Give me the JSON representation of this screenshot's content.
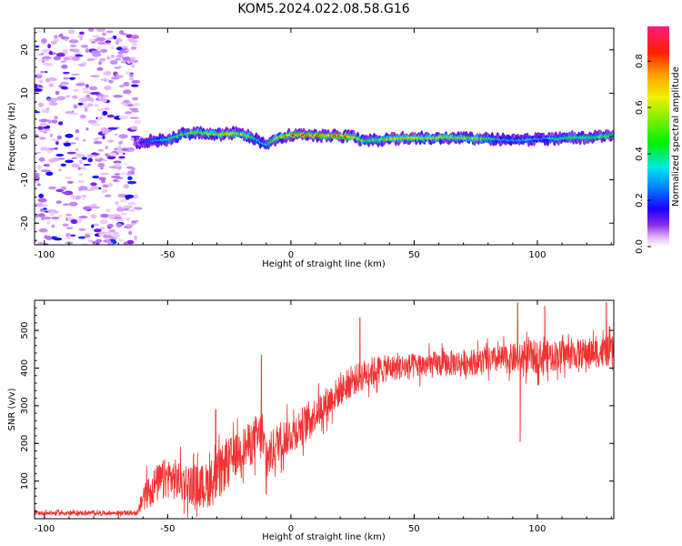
{
  "title": "KOM5.2024.022.08.58.G16",
  "chart_data": [
    {
      "type": "heatmap",
      "xlabel": "Height of straight line (km)",
      "ylabel": "Frequency (Hz)",
      "xlim": [
        -104,
        131
      ],
      "ylim": [
        -25,
        25
      ],
      "xticks": [
        -100,
        -50,
        0,
        50,
        100
      ],
      "yticks": [
        -20,
        -10,
        0,
        10,
        20
      ],
      "colorbar": {
        "label": "Normalized spectral amplitude",
        "ticks": [
          0.0,
          0.2,
          0.4,
          0.6,
          0.8
        ],
        "range": [
          0,
          0.95
        ]
      },
      "noise_region_x": [
        -104,
        -62
      ],
      "ridge": {
        "x": [
          -62,
          -57,
          -50,
          -44,
          -38,
          -33,
          -27,
          -22,
          -17,
          -13,
          -10,
          -6,
          0,
          6,
          12,
          20,
          26,
          30,
          34,
          40,
          48,
          55,
          62,
          70,
          78,
          85,
          90,
          96,
          102,
          108,
          114,
          120,
          126,
          131
        ],
        "frequency": [
          -1.5,
          -1.0,
          -0.8,
          0.5,
          1.0,
          0.6,
          0.5,
          0.8,
          0.1,
          -1.0,
          -2.0,
          -0.5,
          0.4,
          0.3,
          0.2,
          0.2,
          -0.2,
          -1.1,
          -0.8,
          -0.6,
          -0.3,
          -0.4,
          -0.2,
          -0.3,
          -0.5,
          -0.7,
          -0.9,
          -0.8,
          -0.5,
          -0.5,
          -0.2,
          -0.3,
          0.0,
          0.0
        ],
        "amplitude": [
          0.1,
          0.25,
          0.4,
          0.5,
          0.55,
          0.6,
          0.7,
          0.65,
          0.5,
          0.35,
          0.3,
          0.6,
          0.8,
          0.9,
          0.85,
          0.85,
          0.65,
          0.5,
          0.55,
          0.6,
          0.65,
          0.55,
          0.65,
          0.6,
          0.5,
          0.3,
          0.3,
          0.35,
          0.3,
          0.4,
          0.45,
          0.45,
          0.5,
          0.45
        ]
      }
    },
    {
      "type": "line",
      "xlabel": "Height of straight line (km)",
      "ylabel": "SNR (v/v)",
      "xlim": [
        -104,
        131
      ],
      "ylim": [
        0,
        580
      ],
      "xticks": [
        -100,
        -50,
        0,
        50,
        100
      ],
      "yticks": [
        100,
        200,
        300,
        400,
        500
      ],
      "color": "#f03232",
      "envelope": {
        "x": [
          -104,
          -62,
          -60,
          -55,
          -50,
          -45,
          -40,
          -35,
          -30,
          -25,
          -20,
          -15,
          -12,
          -10,
          -5,
          0,
          5,
          10,
          15,
          20,
          25,
          30,
          35,
          40,
          50,
          60,
          70,
          80,
          90,
          95,
          100,
          110,
          120,
          131
        ],
        "baseline": [
          15,
          15,
          60,
          90,
          110,
          100,
          90,
          85,
          110,
          155,
          185,
          205,
          220,
          155,
          205,
          225,
          250,
          280,
          310,
          340,
          365,
          385,
          395,
          400,
          405,
          410,
          415,
          420,
          425,
          430,
          430,
          435,
          440,
          445
        ],
        "spread": [
          6,
          6,
          40,
          50,
          55,
          55,
          55,
          60,
          70,
          60,
          55,
          60,
          70,
          60,
          55,
          50,
          50,
          45,
          45,
          40,
          40,
          40,
          40,
          35,
          35,
          35,
          35,
          35,
          40,
          45,
          45,
          40,
          40,
          40
        ]
      },
      "spikes": [
        {
          "x": -30.5,
          "y": 290
        },
        {
          "x": -12,
          "y": 435
        },
        {
          "x": -10,
          "y": 65
        },
        {
          "x": 28,
          "y": 535
        },
        {
          "x": 92,
          "y": 575
        },
        {
          "x": 93,
          "y": 205
        },
        {
          "x": 103,
          "y": 565
        },
        {
          "x": 128,
          "y": 575
        }
      ]
    }
  ]
}
